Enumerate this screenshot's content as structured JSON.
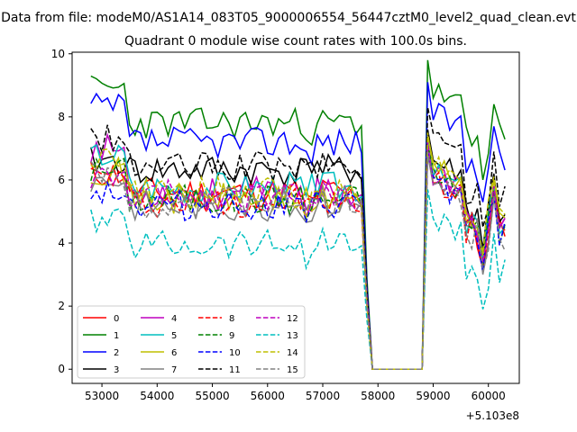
{
  "figure": {
    "suptitle": "Data from file: modeM0/AS1A14_083T05_9000006554_56447cztM0_level2_quad_clean.evt",
    "title": "Quadrant 0 module wise count rates with 100.0s bins.",
    "x_offset_label": "+5.103e8"
  },
  "chart_data": {
    "type": "line",
    "title": "Quadrant 0 module wise count rates with 100.0s bins.",
    "xlabel": "",
    "ylabel": "",
    "x_offset": 510300000,
    "xlim": [
      52460,
      60560
    ],
    "ylim": [
      -0.45,
      10.05
    ],
    "xticks": [
      53000,
      54000,
      55000,
      56000,
      57000,
      58000,
      59000,
      60000
    ],
    "xtick_labels": [
      "53000",
      "54000",
      "55000",
      "56000",
      "57000",
      "58000",
      "59000",
      "60000"
    ],
    "yticks": [
      0,
      2,
      4,
      6,
      8,
      10
    ],
    "ytick_labels": [
      "0",
      "2",
      "4",
      "6",
      "8",
      "10"
    ],
    "grid": false,
    "legend_position": "lower-left",
    "legend_columns": 4,
    "x_start": 52800,
    "x_step": 100,
    "n_points": 76,
    "gap": {
      "from": 57900,
      "to": 58800,
      "value": 0
    },
    "series": [
      {
        "name": "0",
        "color": "#ff0000",
        "dash": "solid",
        "level_start": 6.2,
        "level_mid": 5.6,
        "level_post": 6.0,
        "seed": 11
      },
      {
        "name": "1",
        "color": "#008000",
        "dash": "solid",
        "level_start": 8.9,
        "level_mid": 7.8,
        "level_post": 8.8,
        "seed": 23
      },
      {
        "name": "2",
        "color": "#0000ff",
        "dash": "solid",
        "level_start": 8.3,
        "level_mid": 7.2,
        "level_post": 8.1,
        "seed": 37
      },
      {
        "name": "3",
        "color": "#000000",
        "dash": "solid",
        "level_start": 6.6,
        "level_mid": 6.3,
        "level_post": 6.6,
        "seed": 41
      },
      {
        "name": "4",
        "color": "#bf00bf",
        "dash": "solid",
        "level_start": 7.0,
        "level_mid": 5.6,
        "level_post": 6.2,
        "seed": 53
      },
      {
        "name": "5",
        "color": "#00bfbf",
        "dash": "solid",
        "level_start": 6.8,
        "level_mid": 5.8,
        "level_post": 6.2,
        "seed": 67
      },
      {
        "name": "6",
        "color": "#bfbf00",
        "dash": "solid",
        "level_start": 6.3,
        "level_mid": 5.4,
        "level_post": 6.4,
        "seed": 71
      },
      {
        "name": "7",
        "color": "#808080",
        "dash": "solid",
        "level_start": 6.0,
        "level_mid": 5.2,
        "level_post": 5.8,
        "seed": 83
      },
      {
        "name": "8",
        "color": "#ff0000",
        "dash": "dashed",
        "level_start": 6.1,
        "level_mid": 5.3,
        "level_post": 6.0,
        "seed": 97
      },
      {
        "name": "9",
        "color": "#008000",
        "dash": "dashed",
        "level_start": 6.3,
        "level_mid": 5.4,
        "level_post": 6.1,
        "seed": 101
      },
      {
        "name": "10",
        "color": "#0000ff",
        "dash": "dashed",
        "level_start": 5.7,
        "level_mid": 5.2,
        "level_post": 5.9,
        "seed": 113
      },
      {
        "name": "11",
        "color": "#000000",
        "dash": "dashed",
        "level_start": 7.3,
        "level_mid": 6.4,
        "level_post": 7.3,
        "seed": 127
      },
      {
        "name": "12",
        "color": "#bf00bf",
        "dash": "dashed",
        "level_start": 6.0,
        "level_mid": 5.5,
        "level_post": 6.2,
        "seed": 131
      },
      {
        "name": "13",
        "color": "#00bfbf",
        "dash": "dashed",
        "level_start": 4.7,
        "level_mid": 4.0,
        "level_post": 4.7,
        "seed": 139
      },
      {
        "name": "14",
        "color": "#bfbf00",
        "dash": "dashed",
        "level_start": 6.7,
        "level_mid": 5.6,
        "level_post": 6.5,
        "seed": 149
      },
      {
        "name": "15",
        "color": "#808080",
        "dash": "dashed",
        "level_start": 6.2,
        "level_mid": 5.3,
        "level_post": 5.9,
        "seed": 151
      }
    ]
  }
}
